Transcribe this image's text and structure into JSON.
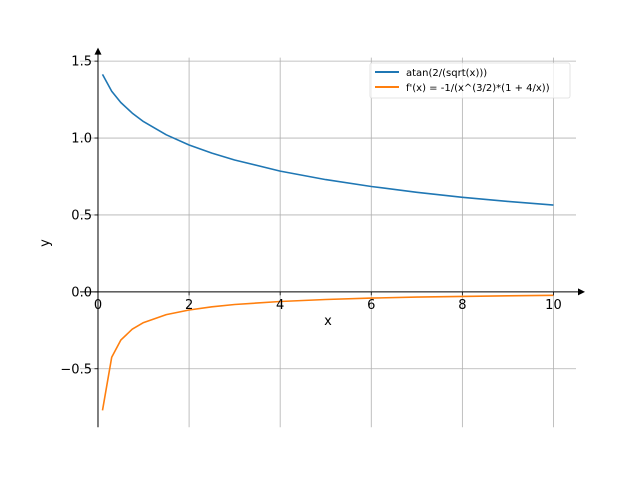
{
  "chart_data": {
    "type": "line",
    "title": "",
    "xlabel": "x",
    "ylabel": "y",
    "xlim": [
      -0.395,
      10.495
    ],
    "ylim": [
      -0.88,
      1.523
    ],
    "grid": true,
    "legend_placement": "top-right",
    "xticks": [
      0,
      2,
      4,
      6,
      8,
      10
    ],
    "xtick_labels": [
      "0",
      "2",
      "4",
      "6",
      "8",
      "10"
    ],
    "yticks": [
      -0.5,
      0.0,
      0.5,
      1.0,
      1.5
    ],
    "ytick_labels": [
      "−0.5",
      "0.0",
      "0.5",
      "1.0",
      "1.5"
    ],
    "x": [
      0.1,
      0.3,
      0.5,
      0.75,
      1,
      1.5,
      2,
      2.5,
      3,
      4,
      5,
      6,
      7,
      8,
      9,
      10
    ],
    "series": [
      {
        "name": "atan(2/(sqrt(x)))",
        "color": "#1f77b4",
        "values": [
          1.414,
          1.304,
          1.231,
          1.162,
          1.107,
          1.021,
          0.955,
          0.902,
          0.857,
          0.785,
          0.73,
          0.685,
          0.647,
          0.615,
          0.588,
          0.564
        ]
      },
      {
        "name": "f'(x) = -1/(x^(3/2)*(1 + 4/x))",
        "color": "#ff7f0e",
        "values": [
          -0.771,
          -0.425,
          -0.314,
          -0.243,
          -0.2,
          -0.148,
          -0.118,
          -0.097,
          -0.0825,
          -0.0625,
          -0.0497,
          -0.0408,
          -0.0344,
          -0.0295,
          -0.0256,
          -0.0226
        ]
      }
    ]
  }
}
